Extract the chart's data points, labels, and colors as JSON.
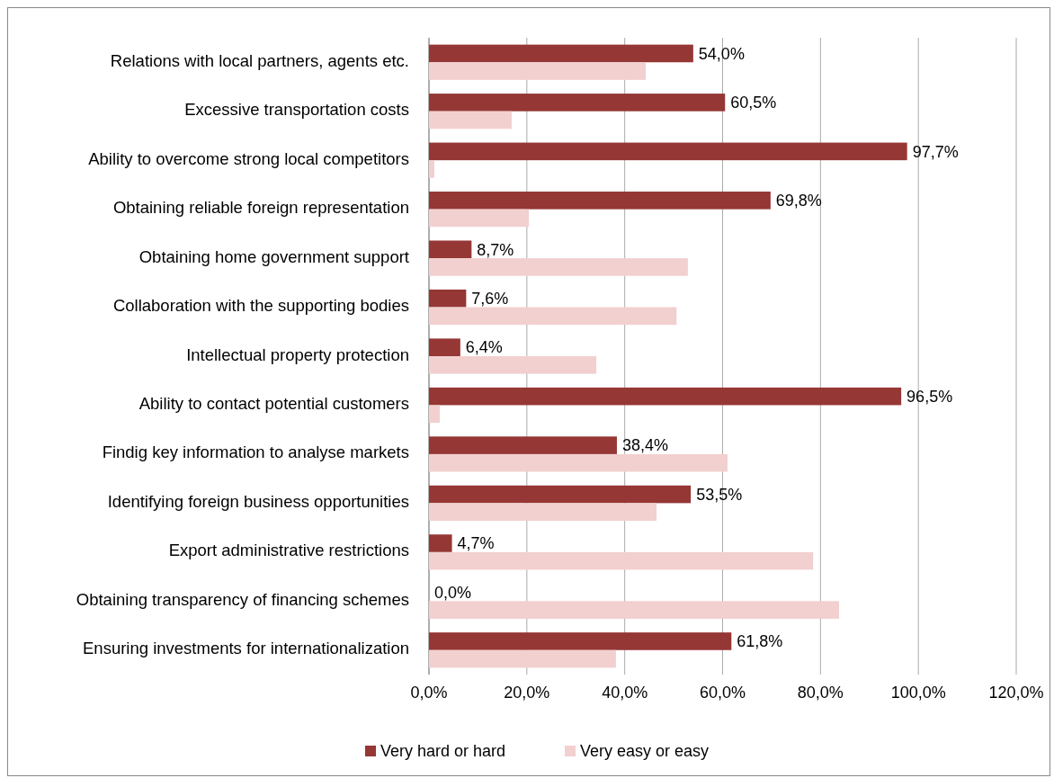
{
  "chart_data": {
    "type": "bar",
    "orientation": "horizontal",
    "categories": [
      "Relations with local partners, agents etc.",
      "Excessive transportation costs",
      "Ability to overcome strong local competitors",
      "Obtaining reliable foreign representation ",
      "Obtaining home government support",
      "Collaboration with the supporting bodies",
      "Intellectual property protection",
      "Ability to contact potential customers",
      "Findig key information to analyse markets",
      "Identifying foreign business opportunities",
      "Export administrative restrictions",
      "Obtaining transparency of financing schemes",
      "Ensuring investments for internationalization"
    ],
    "series": [
      {
        "name": "Very hard or hard",
        "color": "#953735",
        "values": [
          54.0,
          60.5,
          97.7,
          69.8,
          8.7,
          7.6,
          6.4,
          96.5,
          38.4,
          53.5,
          4.7,
          0.0,
          61.8
        ],
        "value_labels": [
          "54,0%",
          "60,5%",
          "97,7%",
          "69,8%",
          "8,7%",
          "7,6%",
          "6,4%",
          "96,5%",
          "38,4%",
          "53,5%",
          "4,7%",
          "0,0%",
          "61,8%"
        ]
      },
      {
        "name": "Very easy or easy",
        "color": "#f2d0d0",
        "values": [
          44.3,
          16.9,
          1.1,
          20.4,
          52.9,
          50.6,
          34.2,
          2.2,
          61.0,
          46.5,
          78.5,
          83.8,
          38.2
        ]
      }
    ],
    "xlim": [
      0,
      120
    ],
    "xticks": [
      {
        "value": 0,
        "label": "0,0%"
      },
      {
        "value": 20,
        "label": "20,0%"
      },
      {
        "value": 40,
        "label": "40,0%"
      },
      {
        "value": 60,
        "label": "60,0%"
      },
      {
        "value": 80,
        "label": "80,0%"
      },
      {
        "value": 100,
        "label": "100,0%"
      },
      {
        "value": 120,
        "label": "120,0%"
      }
    ],
    "grid": "x",
    "legend": "bottom"
  }
}
